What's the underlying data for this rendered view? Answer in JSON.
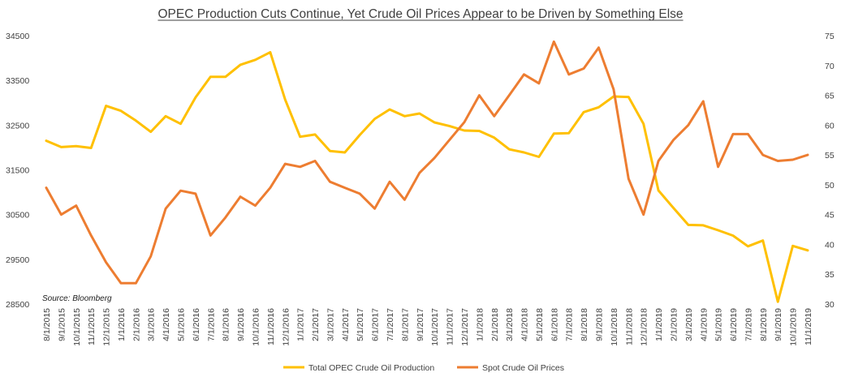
{
  "chart_data": {
    "type": "line",
    "title": "OPEC Production Cuts Continue, Yet Crude Oil Prices Appear to be Driven by Something Else",
    "source": "Source: Bloomberg",
    "grid": false,
    "legend_position": "bottom",
    "categories": [
      "8/1/2015",
      "9/1/2015",
      "10/1/2015",
      "11/1/2015",
      "12/1/2015",
      "1/1/2016",
      "2/1/2016",
      "3/1/2016",
      "4/1/2016",
      "5/1/2016",
      "6/1/2016",
      "7/1/2016",
      "8/1/2016",
      "9/1/2016",
      "10/1/2016",
      "11/1/2016",
      "12/1/2016",
      "1/1/2017",
      "2/1/2017",
      "3/1/2017",
      "4/1/2017",
      "5/1/2017",
      "6/1/2017",
      "7/1/2017",
      "8/1/2017",
      "9/1/2017",
      "10/1/2017",
      "11/1/2017",
      "12/1/2017",
      "1/1/2018",
      "2/1/2018",
      "3/1/2018",
      "4/1/2018",
      "5/1/2018",
      "6/1/2018",
      "7/1/2018",
      "8/1/2018",
      "9/1/2018",
      "10/1/2018",
      "11/1/2018",
      "12/1/2018",
      "1/1/2019",
      "2/1/2019",
      "3/1/2019",
      "4/1/2019",
      "5/1/2019",
      "6/1/2019",
      "7/1/2019",
      "8/1/2019",
      "9/1/2019",
      "10/1/2019",
      "11/1/2019"
    ],
    "y_left": {
      "ylim": [
        28500,
        34500
      ],
      "ticks": [
        "28500",
        "29500",
        "30500",
        "31500",
        "32500",
        "33500",
        "34500"
      ]
    },
    "y_right": {
      "ylim": [
        30,
        75
      ],
      "ticks": [
        "30",
        "35",
        "40",
        "45",
        "50",
        "55",
        "60",
        "65",
        "70",
        "75"
      ]
    },
    "series": [
      {
        "name": "Total OPEC Crude Oil Production",
        "axis": "left",
        "color": "#FFC000",
        "values": [
          32150,
          32010,
          32030,
          31990,
          32930,
          32820,
          32600,
          32350,
          32700,
          32530,
          33120,
          33580,
          33580,
          33850,
          33960,
          34130,
          33070,
          32240,
          32290,
          31920,
          31890,
          32280,
          32640,
          32850,
          32700,
          32760,
          32560,
          32480,
          32380,
          32370,
          32220,
          31960,
          31890,
          31790,
          32310,
          32320,
          32790,
          32900,
          33140,
          33130,
          32530,
          31040,
          30650,
          30270,
          30260,
          30150,
          30030,
          29790,
          29920,
          28550,
          29800,
          29700
        ]
      },
      {
        "name": "Spot Crude Oil Prices",
        "axis": "right",
        "color": "#ED7D31",
        "values": [
          49.5,
          45.0,
          46.5,
          41.5,
          37.0,
          33.5,
          33.5,
          38.0,
          46.0,
          49.0,
          48.5,
          41.5,
          44.5,
          48.0,
          46.5,
          49.5,
          53.5,
          53.0,
          54.0,
          50.5,
          49.5,
          48.5,
          46.0,
          50.5,
          47.5,
          52.0,
          54.5,
          57.5,
          60.5,
          65.0,
          61.5,
          65.0,
          68.5,
          67.0,
          74.0,
          68.5,
          69.5,
          73.0,
          66.0,
          51.0,
          45.0,
          54.0,
          57.5,
          60.0,
          64.0,
          53.0,
          58.5,
          58.5,
          55.0,
          54.0,
          54.2,
          55.0
        ]
      }
    ]
  }
}
